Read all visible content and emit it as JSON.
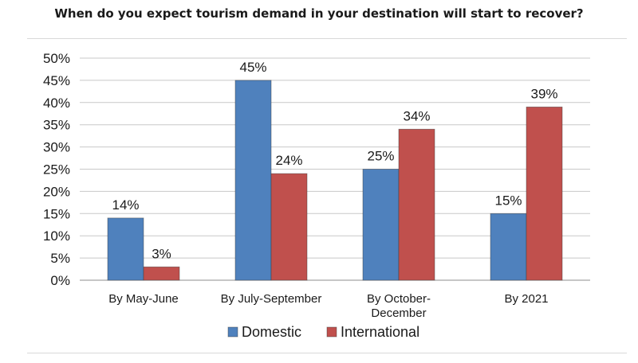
{
  "chart_data": {
    "type": "bar",
    "title": "When do you expect tourism demand in your destination will start to recover?",
    "categories": [
      [
        "By May-June"
      ],
      [
        "By July-September"
      ],
      [
        "By October-",
        "December"
      ],
      [
        "By 2021"
      ]
    ],
    "series": [
      {
        "name": "Domestic",
        "values": [
          14,
          45,
          25,
          15
        ],
        "labels": [
          "14%",
          "45%",
          "25%",
          "15%"
        ],
        "color": "#4f81bd"
      },
      {
        "name": "International",
        "values": [
          3,
          24,
          34,
          39
        ],
        "labels": [
          "3%",
          "24%",
          "34%",
          "39%"
        ],
        "color": "#c0504d"
      }
    ],
    "ylim": [
      0,
      50
    ],
    "yticks": [
      0,
      5,
      10,
      15,
      20,
      25,
      30,
      35,
      40,
      45,
      50
    ],
    "ytick_labels": [
      "0%",
      "5%",
      "10%",
      "15%",
      "20%",
      "25%",
      "30%",
      "35%",
      "40%",
      "45%",
      "50%"
    ],
    "grid": true,
    "legend": "bottom"
  }
}
